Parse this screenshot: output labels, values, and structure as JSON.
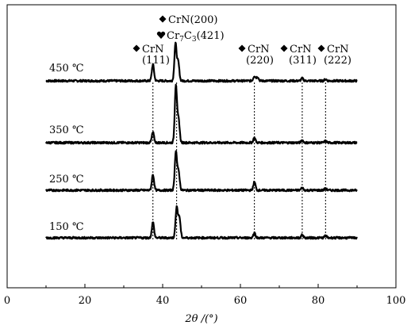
{
  "chart_data": {
    "type": "line",
    "title": "",
    "xlabel": "2θ /(°)",
    "ylabel": "",
    "xlim": [
      0,
      100
    ],
    "x_ticks": [
      0,
      20,
      40,
      60,
      80,
      100
    ],
    "y_ticks_shown": false,
    "grid": false,
    "series": [
      {
        "name": "450 ℃",
        "x_range": [
          10,
          90
        ],
        "peaks": [
          {
            "x": 37.5,
            "height": 0.4
          },
          {
            "x": 43.3,
            "height": 0.9
          },
          {
            "x": 44.0,
            "height": 0.45
          },
          {
            "x": 63.6,
            "height": 0.12
          },
          {
            "x": 64.4,
            "height": 0.1
          },
          {
            "x": 75.9,
            "height": 0.06
          },
          {
            "x": 81.9,
            "height": 0.04
          }
        ]
      },
      {
        "name": "350 ℃",
        "x_range": [
          10,
          90
        ],
        "peaks": [
          {
            "x": 37.5,
            "height": 0.25
          },
          {
            "x": 43.4,
            "height": 1.4
          },
          {
            "x": 44.1,
            "height": 0.55
          },
          {
            "x": 63.6,
            "height": 0.12
          },
          {
            "x": 75.9,
            "height": 0.06
          },
          {
            "x": 81.9,
            "height": 0.04
          }
        ]
      },
      {
        "name": "250 ℃",
        "x_range": [
          10,
          90
        ],
        "peaks": [
          {
            "x": 37.5,
            "height": 0.38
          },
          {
            "x": 43.4,
            "height": 0.95
          },
          {
            "x": 44.1,
            "height": 0.45
          },
          {
            "x": 63.6,
            "height": 0.2
          },
          {
            "x": 75.9,
            "height": 0.06
          },
          {
            "x": 81.9,
            "height": 0.04
          }
        ]
      },
      {
        "name": "150 ℃",
        "x_range": [
          10,
          90
        ],
        "peaks": [
          {
            "x": 37.5,
            "height": 0.38
          },
          {
            "x": 43.6,
            "height": 0.75
          },
          {
            "x": 44.3,
            "height": 0.5
          },
          {
            "x": 63.6,
            "height": 0.12
          },
          {
            "x": 75.9,
            "height": 0.07
          },
          {
            "x": 81.9,
            "height": 0.05
          }
        ]
      }
    ],
    "reference_lines": [
      37.5,
      43.6,
      63.6,
      75.9,
      81.9
    ],
    "annotations": [
      {
        "marker": "diamond",
        "text": "CrN",
        "text2": "(111)",
        "x": 37.5
      },
      {
        "marker": "diamond",
        "text": "CrN(200)",
        "x": 43.6
      },
      {
        "marker": "heart",
        "text": "Cr7C3(421)",
        "x": 43.6
      },
      {
        "marker": "diamond",
        "text": "CrN",
        "text2": "(220)",
        "x": 63.6
      },
      {
        "marker": "diamond",
        "text": "CrN",
        "text2": "(311)",
        "x": 75.9
      },
      {
        "marker": "diamond",
        "text": "CrN",
        "text2": "(222)",
        "x": 81.9
      }
    ]
  }
}
